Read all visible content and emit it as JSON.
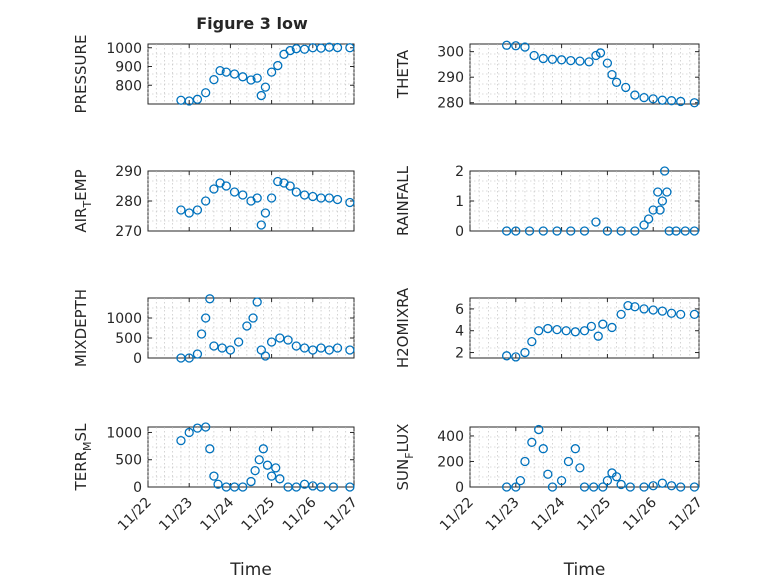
{
  "figure_title": "Figure 3 low",
  "chart_data": [
    {
      "type": "scatter",
      "id": "pressure",
      "ylabel": "PRESSURE",
      "ylabel_sub": "",
      "xlabel": "",
      "xlim": [
        "11/22",
        "11/27"
      ],
      "ylim": [
        700,
        1020
      ],
      "yticks": [
        800,
        900,
        1000
      ],
      "xticks": [
        "11/22",
        "11/23",
        "11/24",
        "11/25",
        "11/26",
        "11/27"
      ],
      "show_x_ticklabels": false,
      "grid": true,
      "points": [
        [
          0.8,
          720
        ],
        [
          1.0,
          716
        ],
        [
          1.2,
          725
        ],
        [
          1.4,
          760
        ],
        [
          1.6,
          830
        ],
        [
          1.75,
          878
        ],
        [
          1.9,
          870
        ],
        [
          2.1,
          860
        ],
        [
          2.3,
          845
        ],
        [
          2.5,
          828
        ],
        [
          2.65,
          838
        ],
        [
          2.75,
          745
        ],
        [
          2.85,
          790
        ],
        [
          3.0,
          870
        ],
        [
          3.15,
          905
        ],
        [
          3.3,
          965
        ],
        [
          3.45,
          985
        ],
        [
          3.6,
          995
        ],
        [
          3.8,
          992
        ],
        [
          4.0,
          1000
        ],
        [
          4.2,
          998
        ],
        [
          4.4,
          1003
        ],
        [
          4.6,
          1001
        ],
        [
          4.9,
          1000
        ]
      ]
    },
    {
      "type": "scatter",
      "id": "theta",
      "ylabel": "THETA",
      "ylabel_sub": "",
      "xlabel": "",
      "xlim": [
        "11/22",
        "11/27"
      ],
      "ylim": [
        279.5,
        303
      ],
      "yticks": [
        280,
        290,
        300
      ],
      "xticks": [
        "11/22",
        "11/23",
        "11/24",
        "11/25",
        "11/26",
        "11/27"
      ],
      "show_x_ticklabels": false,
      "grid": true,
      "points": [
        [
          0.8,
          302.5
        ],
        [
          1.0,
          302.3
        ],
        [
          1.2,
          301.8
        ],
        [
          1.4,
          298.5
        ],
        [
          1.6,
          297.3
        ],
        [
          1.8,
          297.0
        ],
        [
          2.0,
          296.8
        ],
        [
          2.2,
          296.5
        ],
        [
          2.4,
          296.3
        ],
        [
          2.6,
          296.0
        ],
        [
          2.75,
          298.5
        ],
        [
          2.85,
          299.5
        ],
        [
          3.0,
          295.5
        ],
        [
          3.1,
          291
        ],
        [
          3.2,
          288
        ],
        [
          3.4,
          286
        ],
        [
          3.6,
          283
        ],
        [
          3.8,
          282
        ],
        [
          4.0,
          281.5
        ],
        [
          4.2,
          281
        ],
        [
          4.4,
          280.8
        ],
        [
          4.6,
          280.5
        ],
        [
          4.9,
          280
        ]
      ]
    },
    {
      "type": "scatter",
      "id": "airtemp",
      "ylabel": "AIR",
      "ylabel_sub": "T",
      "ylabel_rest": "EMP",
      "xlabel": "",
      "xlim": [
        "11/22",
        "11/27"
      ],
      "ylim": [
        270,
        290
      ],
      "yticks": [
        270,
        280,
        290
      ],
      "xticks": [
        "11/22",
        "11/23",
        "11/24",
        "11/25",
        "11/26",
        "11/27"
      ],
      "show_x_ticklabels": false,
      "grid": true,
      "points": [
        [
          0.8,
          277
        ],
        [
          1.0,
          276
        ],
        [
          1.2,
          277
        ],
        [
          1.4,
          280
        ],
        [
          1.6,
          284
        ],
        [
          1.75,
          286
        ],
        [
          1.9,
          285
        ],
        [
          2.1,
          283
        ],
        [
          2.3,
          282
        ],
        [
          2.5,
          280
        ],
        [
          2.65,
          281
        ],
        [
          2.75,
          272
        ],
        [
          2.85,
          276
        ],
        [
          3.0,
          281
        ],
        [
          3.15,
          286.5
        ],
        [
          3.3,
          286
        ],
        [
          3.45,
          285
        ],
        [
          3.6,
          283
        ],
        [
          3.8,
          282
        ],
        [
          4.0,
          281.5
        ],
        [
          4.2,
          281
        ],
        [
          4.4,
          281
        ],
        [
          4.6,
          280.5
        ],
        [
          4.9,
          279.5
        ]
      ]
    },
    {
      "type": "scatter",
      "id": "rainfall",
      "ylabel": "RAINFALL",
      "ylabel_sub": "",
      "xlabel": "",
      "xlim": [
        "11/22",
        "11/27"
      ],
      "ylim": [
        0,
        2
      ],
      "yticks": [
        0,
        1,
        2
      ],
      "xticks": [
        "11/22",
        "11/23",
        "11/24",
        "11/25",
        "11/26",
        "11/27"
      ],
      "show_x_ticklabels": false,
      "grid": true,
      "points": [
        [
          0.8,
          0
        ],
        [
          1.0,
          0
        ],
        [
          1.3,
          0
        ],
        [
          1.6,
          0
        ],
        [
          1.9,
          0
        ],
        [
          2.2,
          0
        ],
        [
          2.5,
          0
        ],
        [
          2.75,
          0.3
        ],
        [
          3.0,
          0
        ],
        [
          3.3,
          0
        ],
        [
          3.6,
          0
        ],
        [
          3.8,
          0.2
        ],
        [
          3.9,
          0.4
        ],
        [
          4.0,
          0.7
        ],
        [
          4.1,
          1.3
        ],
        [
          4.15,
          0.7
        ],
        [
          4.2,
          1.0
        ],
        [
          4.25,
          2.0
        ],
        [
          4.3,
          1.3
        ],
        [
          4.35,
          0
        ],
        [
          4.5,
          0
        ],
        [
          4.7,
          0
        ],
        [
          4.9,
          0
        ]
      ]
    },
    {
      "type": "scatter",
      "id": "mixdepth",
      "ylabel": "MIXDEPTH",
      "ylabel_sub": "",
      "xlabel": "",
      "xlim": [
        "11/22",
        "11/27"
      ],
      "ylim": [
        0,
        1500
      ],
      "yticks": [
        0,
        500,
        1000
      ],
      "xticks": [
        "11/22",
        "11/23",
        "11/24",
        "11/25",
        "11/26",
        "11/27"
      ],
      "show_x_ticklabels": false,
      "grid": true,
      "points": [
        [
          0.8,
          0
        ],
        [
          1.0,
          0
        ],
        [
          1.2,
          100
        ],
        [
          1.3,
          600
        ],
        [
          1.4,
          1000
        ],
        [
          1.5,
          1480
        ],
        [
          1.6,
          300
        ],
        [
          1.8,
          250
        ],
        [
          2.0,
          200
        ],
        [
          2.2,
          400
        ],
        [
          2.4,
          800
        ],
        [
          2.55,
          1000
        ],
        [
          2.65,
          1400
        ],
        [
          2.75,
          200
        ],
        [
          2.85,
          50
        ],
        [
          3.0,
          400
        ],
        [
          3.2,
          500
        ],
        [
          3.4,
          450
        ],
        [
          3.6,
          300
        ],
        [
          3.8,
          250
        ],
        [
          4.0,
          200
        ],
        [
          4.2,
          250
        ],
        [
          4.4,
          200
        ],
        [
          4.6,
          250
        ],
        [
          4.9,
          200
        ]
      ]
    },
    {
      "type": "scatter",
      "id": "h2omixra",
      "ylabel": "H2OMIXRA",
      "ylabel_sub": "",
      "xlabel": "",
      "xlim": [
        "11/22",
        "11/27"
      ],
      "ylim": [
        1.5,
        7
      ],
      "yticks": [
        2,
        4,
        6
      ],
      "xticks": [
        "11/22",
        "11/23",
        "11/24",
        "11/25",
        "11/26",
        "11/27"
      ],
      "show_x_ticklabels": false,
      "grid": true,
      "points": [
        [
          0.8,
          1.7
        ],
        [
          1.0,
          1.6
        ],
        [
          1.2,
          2.0
        ],
        [
          1.35,
          3.0
        ],
        [
          1.5,
          4.0
        ],
        [
          1.7,
          4.2
        ],
        [
          1.9,
          4.1
        ],
        [
          2.1,
          4.0
        ],
        [
          2.3,
          3.9
        ],
        [
          2.5,
          4.0
        ],
        [
          2.65,
          4.4
        ],
        [
          2.8,
          3.5
        ],
        [
          2.9,
          4.6
        ],
        [
          3.1,
          4.3
        ],
        [
          3.3,
          5.5
        ],
        [
          3.45,
          6.3
        ],
        [
          3.6,
          6.2
        ],
        [
          3.8,
          6.0
        ],
        [
          4.0,
          5.9
        ],
        [
          4.2,
          5.8
        ],
        [
          4.4,
          5.6
        ],
        [
          4.6,
          5.5
        ],
        [
          4.9,
          5.5
        ]
      ]
    },
    {
      "type": "scatter",
      "id": "terrmsl",
      "ylabel": "TERR",
      "ylabel_sub": "M",
      "ylabel_rest": "SL",
      "xlabel": "Time",
      "xlim": [
        "11/22",
        "11/27"
      ],
      "ylim": [
        0,
        1100
      ],
      "yticks": [
        0,
        500,
        1000
      ],
      "xticks": [
        "11/22",
        "11/23",
        "11/24",
        "11/25",
        "11/26",
        "11/27"
      ],
      "show_x_ticklabels": true,
      "grid": true,
      "points": [
        [
          0.8,
          850
        ],
        [
          1.0,
          1000
        ],
        [
          1.2,
          1080
        ],
        [
          1.4,
          1100
        ],
        [
          1.5,
          700
        ],
        [
          1.6,
          200
        ],
        [
          1.7,
          50
        ],
        [
          1.9,
          0
        ],
        [
          2.1,
          0
        ],
        [
          2.3,
          0
        ],
        [
          2.5,
          100
        ],
        [
          2.6,
          300
        ],
        [
          2.7,
          500
        ],
        [
          2.8,
          700
        ],
        [
          2.9,
          400
        ],
        [
          3.0,
          200
        ],
        [
          3.1,
          350
        ],
        [
          3.2,
          150
        ],
        [
          3.4,
          0
        ],
        [
          3.6,
          0
        ],
        [
          3.8,
          50
        ],
        [
          4.0,
          20
        ],
        [
          4.2,
          0
        ],
        [
          4.5,
          0
        ],
        [
          4.9,
          0
        ]
      ]
    },
    {
      "type": "scatter",
      "id": "sunflux",
      "ylabel": "SUN",
      "ylabel_sub": "F",
      "ylabel_rest": "LUX",
      "xlabel": "Time",
      "xlim": [
        "11/22",
        "11/27"
      ],
      "ylim": [
        0,
        470
      ],
      "yticks": [
        0,
        200,
        400
      ],
      "xticks": [
        "11/22",
        "11/23",
        "11/24",
        "11/25",
        "11/26",
        "11/27"
      ],
      "show_x_ticklabels": true,
      "grid": true,
      "points": [
        [
          0.8,
          0
        ],
        [
          1.0,
          0
        ],
        [
          1.1,
          50
        ],
        [
          1.2,
          200
        ],
        [
          1.35,
          350
        ],
        [
          1.5,
          450
        ],
        [
          1.6,
          300
        ],
        [
          1.7,
          100
        ],
        [
          1.8,
          0
        ],
        [
          2.0,
          50
        ],
        [
          2.15,
          200
        ],
        [
          2.3,
          300
        ],
        [
          2.4,
          150
        ],
        [
          2.5,
          0
        ],
        [
          2.7,
          0
        ],
        [
          2.9,
          0
        ],
        [
          3.0,
          50
        ],
        [
          3.1,
          110
        ],
        [
          3.2,
          80
        ],
        [
          3.3,
          20
        ],
        [
          3.5,
          0
        ],
        [
          3.8,
          0
        ],
        [
          4.0,
          10
        ],
        [
          4.2,
          30
        ],
        [
          4.4,
          10
        ],
        [
          4.6,
          0
        ],
        [
          4.9,
          0
        ]
      ]
    }
  ]
}
